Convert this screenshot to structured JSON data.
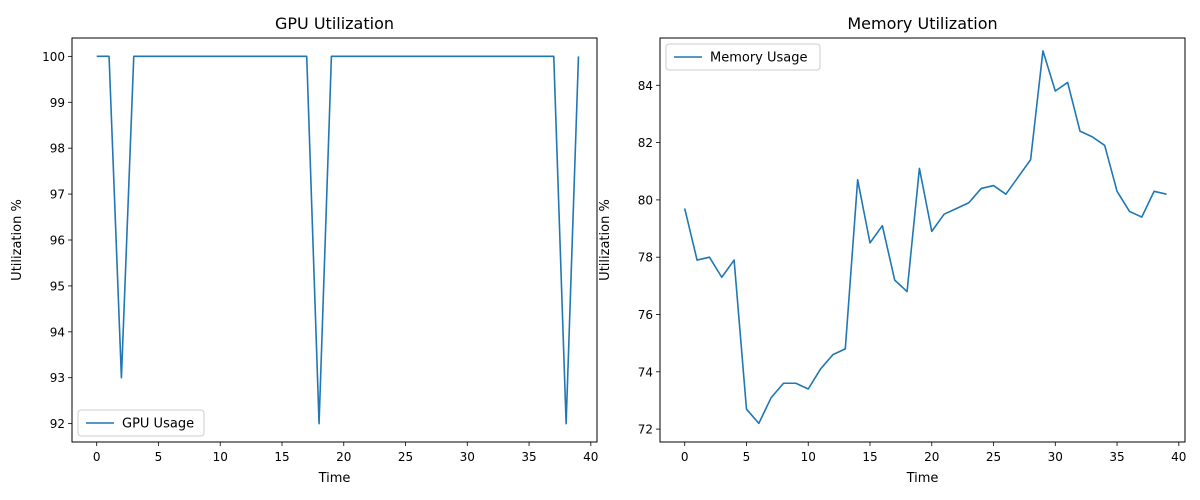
{
  "chart_data": [
    {
      "type": "line",
      "title": "GPU Utilization",
      "xlabel": "Time",
      "ylabel": "Utilization %",
      "xlim": [
        -2,
        40.5
      ],
      "ylim": [
        91.6,
        100.4
      ],
      "xticks": [
        0,
        5,
        10,
        15,
        20,
        25,
        30,
        35,
        40
      ],
      "yticks": [
        92,
        93,
        94,
        95,
        96,
        97,
        98,
        99,
        100
      ],
      "legend": "lower-left",
      "grid": false,
      "series": [
        {
          "name": "GPU Usage",
          "color": "#1f77b4",
          "x": [
            0,
            1,
            2,
            3,
            4,
            5,
            6,
            7,
            8,
            9,
            10,
            11,
            12,
            13,
            14,
            15,
            16,
            17,
            18,
            19,
            20,
            21,
            22,
            23,
            24,
            25,
            26,
            27,
            28,
            29,
            30,
            31,
            32,
            33,
            34,
            35,
            36,
            37,
            38,
            39
          ],
          "values": [
            100,
            100,
            93,
            100,
            100,
            100,
            100,
            100,
            100,
            100,
            100,
            100,
            100,
            100,
            100,
            100,
            100,
            100,
            92,
            100,
            100,
            100,
            100,
            100,
            100,
            100,
            100,
            100,
            100,
            100,
            100,
            100,
            100,
            100,
            100,
            100,
            100,
            100,
            92,
            100
          ]
        }
      ]
    },
    {
      "type": "line",
      "title": "Memory Utilization",
      "xlabel": "Time",
      "ylabel": "Utilization %",
      "xlim": [
        -2,
        40.5
      ],
      "ylim": [
        71.55,
        85.65
      ],
      "xticks": [
        0,
        5,
        10,
        15,
        20,
        25,
        30,
        35,
        40
      ],
      "yticks": [
        72,
        74,
        76,
        78,
        80,
        82,
        84
      ],
      "legend": "upper-left",
      "grid": false,
      "series": [
        {
          "name": "Memory Usage",
          "color": "#1f77b4",
          "x": [
            0,
            1,
            2,
            3,
            4,
            5,
            6,
            7,
            8,
            9,
            10,
            11,
            12,
            13,
            14,
            15,
            16,
            17,
            18,
            19,
            20,
            21,
            22,
            23,
            24,
            25,
            26,
            27,
            28,
            29,
            30,
            31,
            32,
            33,
            34,
            35,
            36,
            37,
            38,
            39
          ],
          "values": [
            79.7,
            77.9,
            78.0,
            77.3,
            77.9,
            72.7,
            72.2,
            73.1,
            73.6,
            73.6,
            73.4,
            74.1,
            74.6,
            74.8,
            80.7,
            78.5,
            79.1,
            77.2,
            76.8,
            81.1,
            78.9,
            79.5,
            79.7,
            79.9,
            80.4,
            80.5,
            80.2,
            80.8,
            81.4,
            85.2,
            83.8,
            84.1,
            82.4,
            82.2,
            81.9,
            80.3,
            79.6,
            79.4,
            80.3,
            80.2
          ]
        }
      ]
    }
  ]
}
